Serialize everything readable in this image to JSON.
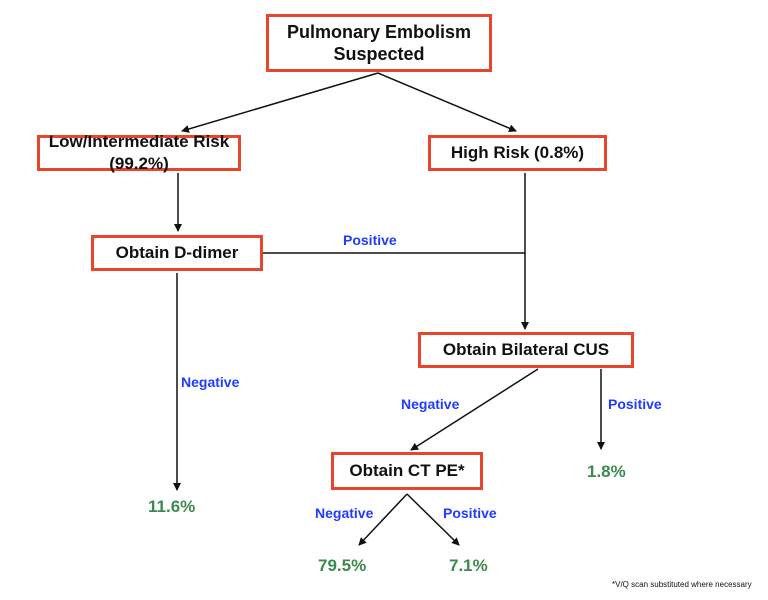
{
  "nodes": {
    "start": "Pulmonary Embolism Suspected",
    "low_risk": "Low/Intermediate Risk (99.2%)",
    "high_risk": "High Risk (0.8%)",
    "ddimer": "Obtain D-dimer",
    "cus": "Obtain Bilateral CUS",
    "ctpe": "Obtain CT PE*"
  },
  "edge_labels": {
    "ddimer_positive": "Positive",
    "ddimer_negative": "Negative",
    "cus_negative": "Negative",
    "cus_positive": "Positive",
    "ct_negative": "Negative",
    "ct_positive": "Positive"
  },
  "outcomes": {
    "ddimer_negative": "11.6%",
    "cus_positive": "1.8%",
    "ct_negative": "79.5%",
    "ct_positive": "7.1%"
  },
  "footnote": "*V/Q scan substituted where necessary",
  "colors": {
    "box_border": "#e8452c",
    "edge_label": "#1f3cff",
    "outcome": "#3b8a4e"
  }
}
